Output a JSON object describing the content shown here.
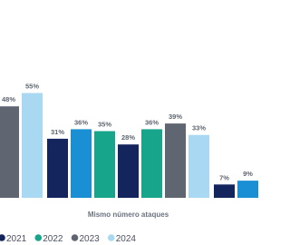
{
  "chart_data": {
    "type": "bar",
    "categories": [
      null,
      "Mismo número ataques",
      null
    ],
    "ylim": [
      0,
      100
    ],
    "series": [
      {
        "color": "#14245c",
        "values": [
          null,
          31,
          7
        ],
        "value_labels": [
          null,
          "31%",
          "7%"
        ]
      },
      {
        "color": "#1b8fd3",
        "values": [
          null,
          36,
          9
        ],
        "value_labels": [
          null,
          "36%",
          "9%"
        ]
      },
      {
        "color": "#17a58c",
        "values": [
          null,
          35,
          null
        ],
        "value_labels": [
          null,
          "35%",
          null
        ]
      },
      {
        "name": "2021",
        "color": "#14245c",
        "values": [
          null,
          28,
          null
        ],
        "value_labels": [
          null,
          "28%",
          null
        ]
      },
      {
        "name": "2022",
        "color": "#17a58c",
        "values": [
          null,
          36,
          null
        ],
        "value_labels": [
          null,
          "36%",
          null
        ]
      },
      {
        "name": "2023",
        "color": "#5f6671",
        "values": [
          48,
          39,
          null
        ],
        "value_labels": [
          "48%",
          "39%",
          null
        ]
      },
      {
        "name": "2024",
        "color": "#a9d8f2",
        "values": [
          55,
          33,
          null
        ],
        "value_labels": [
          "55%",
          "33%",
          null
        ]
      }
    ]
  }
}
